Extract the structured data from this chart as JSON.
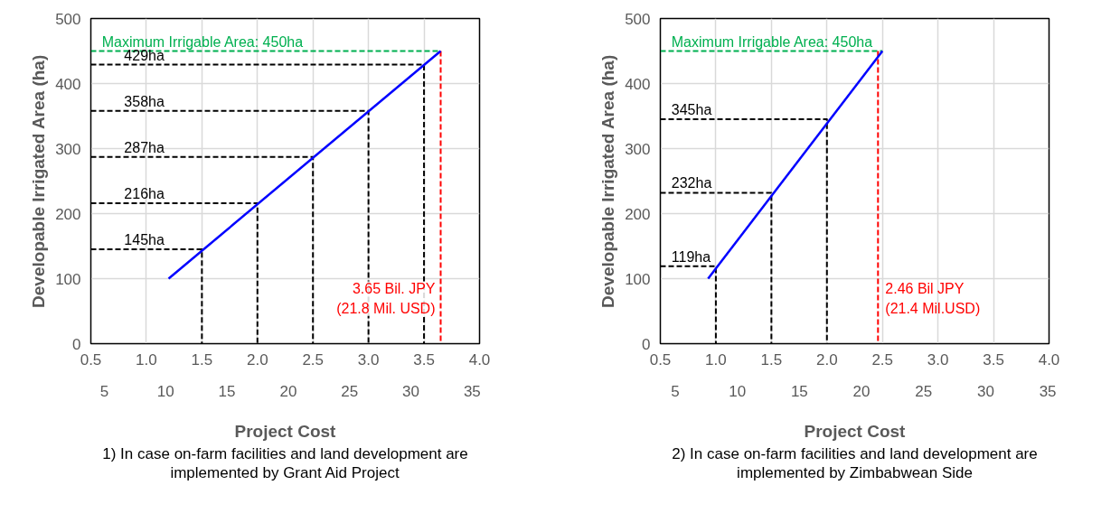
{
  "chart_data": [
    {
      "type": "line",
      "xlabel": "Project Cost",
      "ylabel": "Developable Irrigated Area (ha)",
      "xlim": [
        0.5,
        4.0
      ],
      "ylim": [
        0,
        500
      ],
      "xticks": [
        {
          "value": 0.5,
          "label": "0.5"
        },
        {
          "value": 1.0,
          "label": "1.0"
        },
        {
          "value": 1.5,
          "label": "1.5"
        },
        {
          "value": 2.0,
          "label": "2.0"
        },
        {
          "value": 2.5,
          "label": "2.5"
        },
        {
          "value": 3.0,
          "label": "3.0"
        },
        {
          "value": 3.5,
          "label": "3.5"
        },
        {
          "value": 4.0,
          "label": "4.0"
        }
      ],
      "yticks": [
        0,
        100,
        200,
        300,
        400,
        500
      ],
      "x2lim": [
        3.9,
        35.6
      ],
      "x2ticks": [
        5,
        10,
        15,
        20,
        25,
        30,
        35
      ],
      "grid": true,
      "series": [
        {
          "color": "#000000",
          "line_style": "dashed",
          "x": [
            0.5,
            1.5,
            1.5
          ],
          "values": [
            145,
            145,
            0
          ]
        },
        {
          "color": "#000000",
          "line_style": "dashed",
          "x": [
            0.5,
            2.0,
            2.0
          ],
          "values": [
            216,
            216,
            0
          ]
        },
        {
          "color": "#000000",
          "line_style": "dashed",
          "x": [
            0.5,
            2.5,
            2.5
          ],
          "values": [
            287,
            287,
            0
          ]
        },
        {
          "color": "#000000",
          "line_style": "dashed",
          "x": [
            0.5,
            3.0,
            3.0
          ],
          "values": [
            358,
            358,
            0
          ]
        },
        {
          "color": "#000000",
          "line_style": "dashed",
          "x": [
            0.5,
            3.5,
            3.5
          ],
          "values": [
            429,
            429,
            0
          ]
        },
        {
          "color": "#00b050",
          "line_style": "dashed",
          "x": [
            0.5,
            3.65
          ],
          "values": [
            450,
            450
          ]
        },
        {
          "color": "#ff0000",
          "line_style": "dashed",
          "x": [
            3.65,
            3.65
          ],
          "values": [
            450,
            0
          ]
        },
        {
          "color": "#0000ff",
          "line_style": "solid",
          "x": [
            1.2,
            3.65
          ],
          "values": [
            100,
            450
          ]
        }
      ],
      "annotations": [
        {
          "text": "145ha",
          "x": 0.8,
          "y": 145
        },
        {
          "text": "216ha",
          "x": 0.8,
          "y": 216
        },
        {
          "text": "287ha",
          "x": 0.8,
          "y": 287
        },
        {
          "text": "358ha",
          "x": 0.8,
          "y": 358
        },
        {
          "text": "429ha",
          "x": 0.8,
          "y": 429
        },
        {
          "text": "Maximum Irrigable Area: 450ha",
          "x": 0.6,
          "y": 450
        },
        {
          "text": "3.65 Bil. JPY\n(21.8 Mil. USD)",
          "x": 3.65,
          "y": 40
        },
        "1) In case on-farm facilities and land development are implemented by Grant Aid Project"
      ]
    },
    {
      "type": "line",
      "xlabel": "Project Cost",
      "ylabel": "Developable Irrigated Area (ha)",
      "xlim": [
        0.5,
        4.0
      ],
      "ylim": [
        0,
        500
      ],
      "xticks": [
        {
          "value": 0.5,
          "label": "0.5"
        },
        {
          "value": 1.0,
          "label": "1.0"
        },
        {
          "value": 1.5,
          "label": "1.5"
        },
        {
          "value": 2.0,
          "label": "2.0"
        },
        {
          "value": 2.5,
          "label": "2.5"
        },
        {
          "value": 3.0,
          "label": "3.0"
        },
        {
          "value": 3.5,
          "label": "3.5"
        },
        {
          "value": 4.0,
          "label": "4.0"
        }
      ],
      "yticks": [
        0,
        100,
        200,
        300,
        400,
        500
      ],
      "x2lim": [
        3.8,
        35.1
      ],
      "x2ticks": [
        5,
        10,
        15,
        20,
        25,
        30,
        35
      ],
      "grid": true,
      "series": [
        {
          "color": "#000000",
          "line_style": "dashed",
          "x": [
            0.5,
            1.0,
            1.0
          ],
          "values": [
            119,
            119,
            0
          ]
        },
        {
          "color": "#000000",
          "line_style": "dashed",
          "x": [
            0.5,
            1.5,
            1.5
          ],
          "values": [
            232,
            232,
            0
          ]
        },
        {
          "color": "#000000",
          "line_style": "dashed",
          "x": [
            0.5,
            2.0,
            2.0
          ],
          "values": [
            345,
            345,
            0
          ]
        },
        {
          "color": "#00b050",
          "line_style": "dashed",
          "x": [
            0.5,
            2.5
          ],
          "values": [
            450,
            450
          ]
        },
        {
          "color": "#ff0000",
          "line_style": "dashed",
          "x": [
            2.46,
            2.46
          ],
          "values": [
            450,
            0
          ]
        },
        {
          "color": "#0000ff",
          "line_style": "solid",
          "x": [
            0.93,
            2.5
          ],
          "values": [
            100,
            450
          ]
        }
      ],
      "annotations": [
        {
          "text": "119ha",
          "x": 0.6,
          "y": 119
        },
        {
          "text": "232ha",
          "x": 0.6,
          "y": 232
        },
        {
          "text": "345ha",
          "x": 0.6,
          "y": 345
        },
        {
          "text": "Maximum Irrigable Area: 450ha",
          "x": 0.6,
          "y": 450
        },
        {
          "text": "2.46 Bil JPY\n(21.4 Mil.USD)",
          "x": 2.46,
          "y": 40
        },
        "2) In case on-farm facilities and land development are implemented by Zimbabwean Side"
      ]
    }
  ]
}
